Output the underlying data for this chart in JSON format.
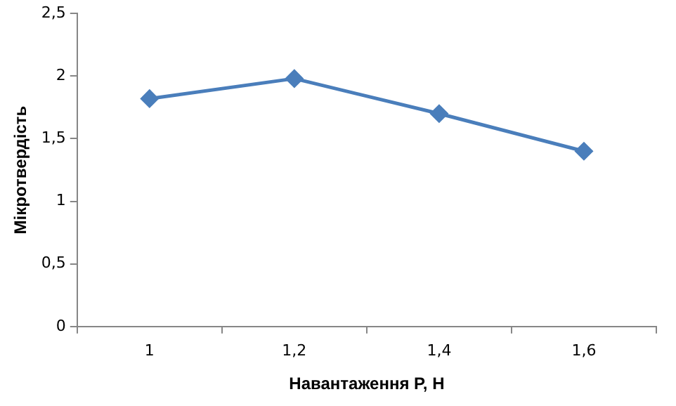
{
  "chart_data": {
    "type": "line",
    "xlabel": "Навантаження Р, Н",
    "ylabel": "Мікротвердість",
    "categories": [
      "1",
      "1,2",
      "1,4",
      "1,6"
    ],
    "series": [
      {
        "color": "#4a7ebb",
        "values": [
          1.82,
          1.98,
          1.7,
          1.4
        ]
      }
    ],
    "ylim": [
      0,
      2.5
    ],
    "yticks": [
      {
        "value": 0,
        "label": "0"
      },
      {
        "value": 0.5,
        "label": "0,5"
      },
      {
        "value": 1,
        "label": "1"
      },
      {
        "value": 1.5,
        "label": "1,5"
      },
      {
        "value": 2,
        "label": "2"
      },
      {
        "value": 2.5,
        "label": "2,5"
      }
    ],
    "grid": false,
    "legend": false,
    "marker": "diamond",
    "line_style": "solid"
  }
}
